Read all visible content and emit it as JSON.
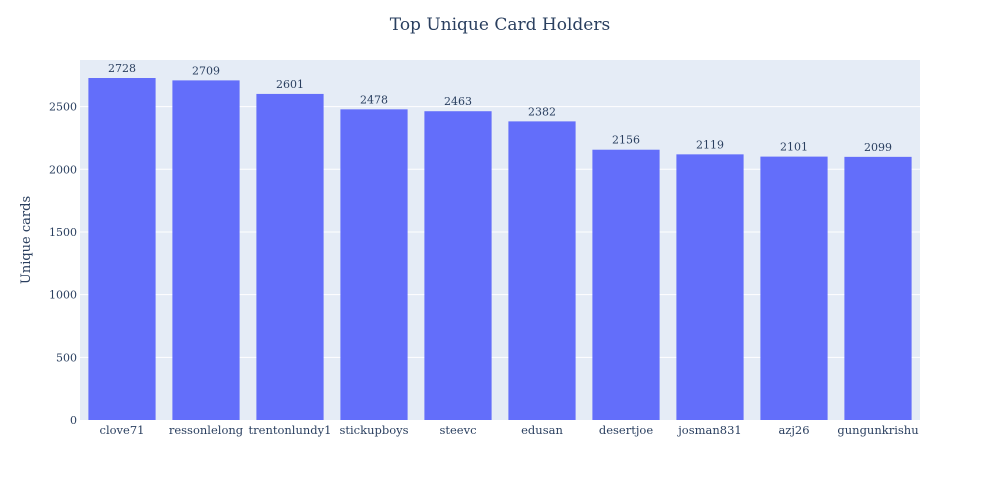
{
  "chart_data": {
    "type": "bar",
    "title": "Top Unique Card Holders",
    "xlabel": "",
    "ylabel": "Unique cards",
    "categories": [
      "clove71",
      "ressonlelong",
      "trentonlundy1",
      "stickupboys",
      "steevc",
      "edusan",
      "desertjoe",
      "josman831",
      "azj26",
      "gungunkrishu"
    ],
    "values": [
      2728,
      2709,
      2601,
      2478,
      2463,
      2382,
      2156,
      2119,
      2101,
      2099
    ],
    "data_labels": [
      "2728",
      "2709",
      "2601",
      "2478",
      "2463",
      "2382",
      "2156",
      "2119",
      "2101",
      "2099"
    ],
    "ylim": [
      0,
      2871.6
    ],
    "yticks": [
      0,
      500,
      1000,
      1500,
      2000,
      2500
    ],
    "grid": true,
    "legend": "none",
    "colors": {
      "bar": "#636efa",
      "plot_bg": "#e5ecf6",
      "grid": "#ffffff",
      "text": "#2a3f5f"
    }
  }
}
